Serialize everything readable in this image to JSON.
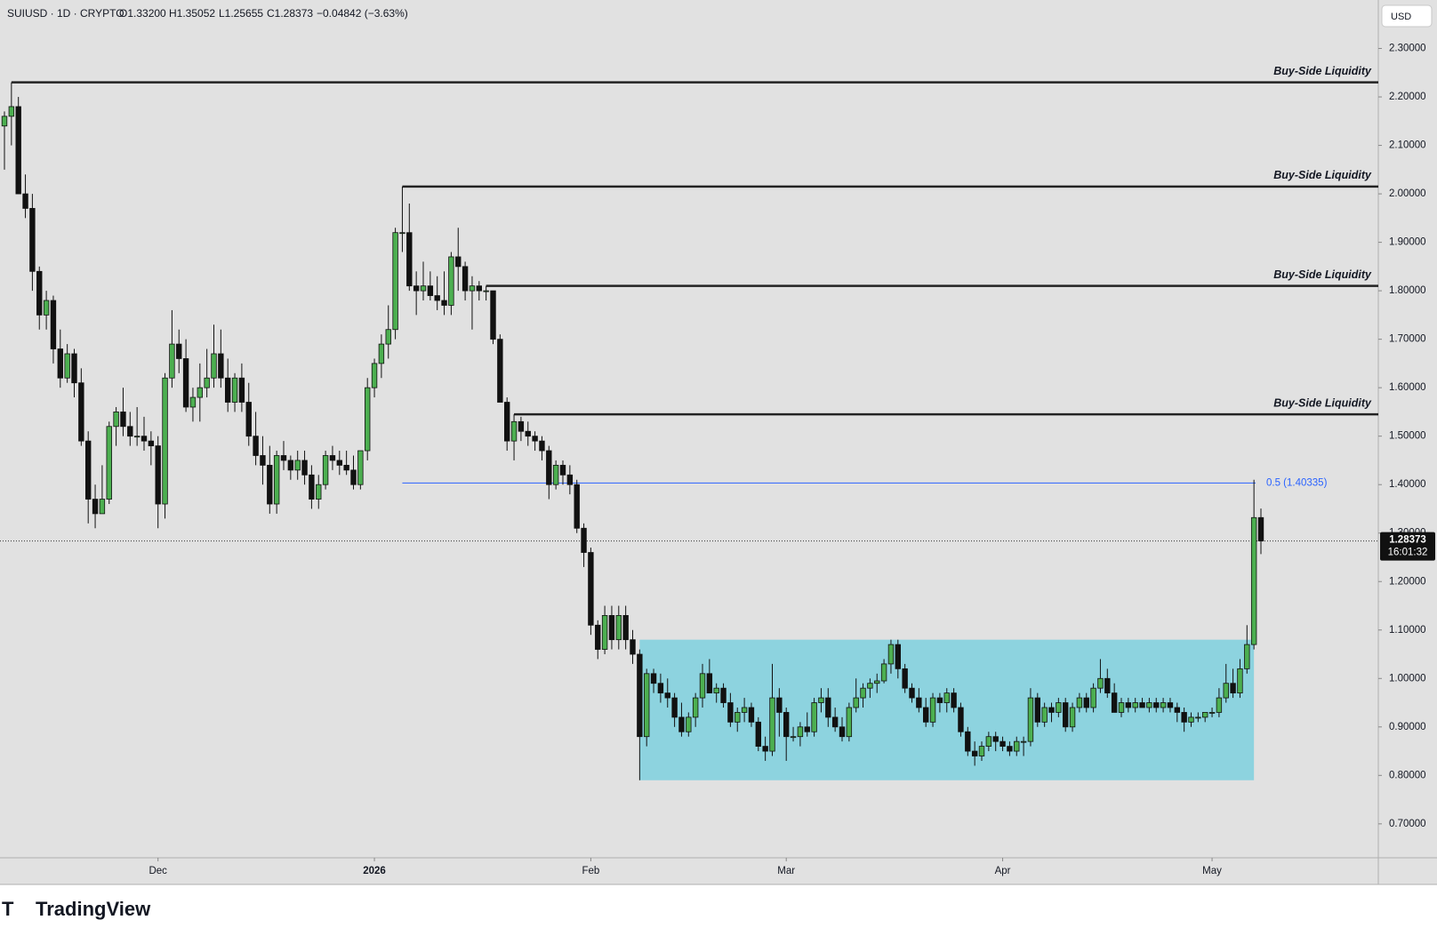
{
  "header": {
    "symbol": "SUIUSD · 1D · CRYPTO",
    "open": "O1.33200",
    "high": "H1.35052",
    "low": "L1.25655",
    "close": "C1.28373",
    "change": "−0.04842 (−3.63%)"
  },
  "currency": "USD",
  "brand": "TradingView",
  "chart_data": {
    "type": "candlestick",
    "up_color": "#4caf50",
    "down_color": "#111111",
    "ylim": [
      0.63,
      2.4
    ],
    "yticks": [
      {
        "value": 0.7,
        "label": "0.70000"
      },
      {
        "value": 0.8,
        "label": "0.80000"
      },
      {
        "value": 0.9,
        "label": "0.90000"
      },
      {
        "value": 1.0,
        "label": "1.00000"
      },
      {
        "value": 1.1,
        "label": "1.10000"
      },
      {
        "value": 1.2,
        "label": "1.20000"
      },
      {
        "value": 1.3,
        "label": "1.30000"
      },
      {
        "value": 1.4,
        "label": "1.40000"
      },
      {
        "value": 1.5,
        "label": "1.50000"
      },
      {
        "value": 1.6,
        "label": "1.60000"
      },
      {
        "value": 1.7,
        "label": "1.70000"
      },
      {
        "value": 1.8,
        "label": "1.80000"
      },
      {
        "value": 1.9,
        "label": "1.90000"
      },
      {
        "value": 2.0,
        "label": "2.00000"
      },
      {
        "value": 2.1,
        "label": "2.10000"
      },
      {
        "value": 2.2,
        "label": "2.20000"
      },
      {
        "value": 2.3,
        "label": "2.30000"
      }
    ],
    "xticks": [
      {
        "value": 22,
        "label": "Dec"
      },
      {
        "value": 53,
        "label": "2026"
      },
      {
        "value": 84,
        "label": "Feb"
      },
      {
        "value": 112,
        "label": "Mar"
      },
      {
        "value": 143,
        "label": "Apr"
      },
      {
        "value": 173,
        "label": "May"
      }
    ],
    "ohlc": [
      [
        2.14,
        2.17,
        2.05,
        2.16
      ],
      [
        2.16,
        2.23,
        2.1,
        2.18
      ],
      [
        2.18,
        2.2,
        2.0,
        2.0
      ],
      [
        2.0,
        2.04,
        1.95,
        1.97
      ],
      [
        1.97,
        2.0,
        1.8,
        1.84
      ],
      [
        1.84,
        1.85,
        1.72,
        1.75
      ],
      [
        1.75,
        1.8,
        1.72,
        1.78
      ],
      [
        1.78,
        1.79,
        1.65,
        1.68
      ],
      [
        1.68,
        1.72,
        1.6,
        1.62
      ],
      [
        1.62,
        1.69,
        1.61,
        1.67
      ],
      [
        1.67,
        1.68,
        1.58,
        1.61
      ],
      [
        1.61,
        1.64,
        1.48,
        1.49
      ],
      [
        1.49,
        1.51,
        1.32,
        1.37
      ],
      [
        1.37,
        1.4,
        1.31,
        1.34
      ],
      [
        1.34,
        1.44,
        1.34,
        1.37
      ],
      [
        1.37,
        1.53,
        1.36,
        1.52
      ],
      [
        1.52,
        1.56,
        1.48,
        1.55
      ],
      [
        1.55,
        1.6,
        1.5,
        1.52
      ],
      [
        1.52,
        1.55,
        1.48,
        1.5
      ],
      [
        1.5,
        1.56,
        1.48,
        1.5
      ],
      [
        1.5,
        1.54,
        1.47,
        1.49
      ],
      [
        1.49,
        1.51,
        1.44,
        1.48
      ],
      [
        1.48,
        1.5,
        1.31,
        1.36
      ],
      [
        1.36,
        1.63,
        1.33,
        1.62
      ],
      [
        1.62,
        1.76,
        1.6,
        1.69
      ],
      [
        1.69,
        1.72,
        1.63,
        1.66
      ],
      [
        1.66,
        1.7,
        1.55,
        1.56
      ],
      [
        1.56,
        1.6,
        1.53,
        1.58
      ],
      [
        1.58,
        1.65,
        1.53,
        1.6
      ],
      [
        1.6,
        1.68,
        1.58,
        1.62
      ],
      [
        1.62,
        1.73,
        1.6,
        1.67
      ],
      [
        1.67,
        1.72,
        1.6,
        1.62
      ],
      [
        1.62,
        1.66,
        1.55,
        1.57
      ],
      [
        1.57,
        1.63,
        1.55,
        1.62
      ],
      [
        1.62,
        1.65,
        1.55,
        1.57
      ],
      [
        1.57,
        1.61,
        1.48,
        1.5
      ],
      [
        1.5,
        1.55,
        1.44,
        1.46
      ],
      [
        1.46,
        1.5,
        1.4,
        1.44
      ],
      [
        1.44,
        1.48,
        1.34,
        1.36
      ],
      [
        1.36,
        1.47,
        1.34,
        1.46
      ],
      [
        1.46,
        1.49,
        1.43,
        1.45
      ],
      [
        1.45,
        1.46,
        1.41,
        1.43
      ],
      [
        1.43,
        1.47,
        1.41,
        1.45
      ],
      [
        1.45,
        1.47,
        1.4,
        1.42
      ],
      [
        1.42,
        1.44,
        1.35,
        1.37
      ],
      [
        1.37,
        1.42,
        1.35,
        1.4
      ],
      [
        1.4,
        1.47,
        1.39,
        1.46
      ],
      [
        1.46,
        1.48,
        1.43,
        1.45
      ],
      [
        1.45,
        1.47,
        1.42,
        1.44
      ],
      [
        1.44,
        1.47,
        1.42,
        1.43
      ],
      [
        1.43,
        1.46,
        1.39,
        1.4
      ],
      [
        1.4,
        1.47,
        1.39,
        1.47
      ],
      [
        1.47,
        1.62,
        1.45,
        1.6
      ],
      [
        1.6,
        1.66,
        1.58,
        1.65
      ],
      [
        1.65,
        1.71,
        1.62,
        1.69
      ],
      [
        1.69,
        1.77,
        1.66,
        1.72
      ],
      [
        1.72,
        1.93,
        1.7,
        1.92
      ],
      [
        1.92,
        2.015,
        1.88,
        1.92
      ],
      [
        1.92,
        1.98,
        1.8,
        1.81
      ],
      [
        1.81,
        1.84,
        1.75,
        1.8
      ],
      [
        1.8,
        1.86,
        1.78,
        1.81
      ],
      [
        1.81,
        1.84,
        1.78,
        1.79
      ],
      [
        1.79,
        1.83,
        1.76,
        1.78
      ],
      [
        1.78,
        1.84,
        1.75,
        1.77
      ],
      [
        1.77,
        1.88,
        1.75,
        1.87
      ],
      [
        1.87,
        1.93,
        1.8,
        1.85
      ],
      [
        1.85,
        1.86,
        1.78,
        1.8
      ],
      [
        1.8,
        1.83,
        1.72,
        1.81
      ],
      [
        1.81,
        1.82,
        1.78,
        1.8
      ],
      [
        1.8,
        1.81,
        1.78,
        1.8
      ],
      [
        1.8,
        1.8,
        1.69,
        1.7
      ],
      [
        1.7,
        1.71,
        1.57,
        1.57
      ],
      [
        1.57,
        1.58,
        1.47,
        1.49
      ],
      [
        1.49,
        1.545,
        1.45,
        1.53
      ],
      [
        1.53,
        1.54,
        1.49,
        1.51
      ],
      [
        1.51,
        1.53,
        1.48,
        1.5
      ],
      [
        1.5,
        1.51,
        1.47,
        1.49
      ],
      [
        1.49,
        1.5,
        1.45,
        1.47
      ],
      [
        1.47,
        1.48,
        1.37,
        1.4
      ],
      [
        1.4,
        1.45,
        1.39,
        1.44
      ],
      [
        1.44,
        1.45,
        1.4,
        1.42
      ],
      [
        1.42,
        1.44,
        1.38,
        1.4
      ],
      [
        1.4,
        1.41,
        1.3,
        1.31
      ],
      [
        1.31,
        1.32,
        1.23,
        1.26
      ],
      [
        1.26,
        1.27,
        1.09,
        1.11
      ],
      [
        1.11,
        1.12,
        1.04,
        1.06
      ],
      [
        1.06,
        1.15,
        1.05,
        1.13
      ],
      [
        1.13,
        1.15,
        1.06,
        1.08
      ],
      [
        1.08,
        1.15,
        1.06,
        1.13
      ],
      [
        1.13,
        1.15,
        1.06,
        1.08
      ],
      [
        1.08,
        1.1,
        1.03,
        1.05
      ],
      [
        1.05,
        1.06,
        0.79,
        0.88
      ],
      [
        0.88,
        1.02,
        0.86,
        1.01
      ],
      [
        1.01,
        1.02,
        0.97,
        0.99
      ],
      [
        0.99,
        1.01,
        0.95,
        0.97
      ],
      [
        0.97,
        1.0,
        0.94,
        0.96
      ],
      [
        0.96,
        0.97,
        0.9,
        0.92
      ],
      [
        0.92,
        0.95,
        0.88,
        0.89
      ],
      [
        0.89,
        0.93,
        0.88,
        0.92
      ],
      [
        0.92,
        0.97,
        0.9,
        0.96
      ],
      [
        0.96,
        1.03,
        0.94,
        1.01
      ],
      [
        1.01,
        1.04,
        0.97,
        0.97
      ],
      [
        0.97,
        0.99,
        0.95,
        0.98
      ],
      [
        0.98,
        0.99,
        0.94,
        0.95
      ],
      [
        0.95,
        0.97,
        0.9,
        0.91
      ],
      [
        0.91,
        0.94,
        0.89,
        0.93
      ],
      [
        0.93,
        0.96,
        0.91,
        0.94
      ],
      [
        0.94,
        0.95,
        0.9,
        0.91
      ],
      [
        0.91,
        0.92,
        0.85,
        0.86
      ],
      [
        0.86,
        0.88,
        0.83,
        0.85
      ],
      [
        0.85,
        1.03,
        0.84,
        0.96
      ],
      [
        0.96,
        0.98,
        0.88,
        0.93
      ],
      [
        0.93,
        0.94,
        0.83,
        0.88
      ],
      [
        0.88,
        0.9,
        0.87,
        0.88
      ],
      [
        0.88,
        0.91,
        0.86,
        0.9
      ],
      [
        0.9,
        0.93,
        0.88,
        0.89
      ],
      [
        0.89,
        0.96,
        0.88,
        0.95
      ],
      [
        0.95,
        0.98,
        0.93,
        0.96
      ],
      [
        0.96,
        0.98,
        0.9,
        0.92
      ],
      [
        0.92,
        0.94,
        0.89,
        0.9
      ],
      [
        0.9,
        0.92,
        0.87,
        0.88
      ],
      [
        0.88,
        0.95,
        0.87,
        0.94
      ],
      [
        0.94,
        1.0,
        0.93,
        0.96
      ],
      [
        0.96,
        0.99,
        0.94,
        0.98
      ],
      [
        0.98,
        1.0,
        0.96,
        0.99
      ],
      [
        0.99,
        1.01,
        0.97,
        0.995
      ],
      [
        0.995,
        1.04,
        0.99,
        1.03
      ],
      [
        1.03,
        1.08,
        1.01,
        1.07
      ],
      [
        1.07,
        1.08,
        1.0,
        1.02
      ],
      [
        1.02,
        1.03,
        0.97,
        0.98
      ],
      [
        0.98,
        0.99,
        0.95,
        0.96
      ],
      [
        0.96,
        0.98,
        0.93,
        0.94
      ],
      [
        0.94,
        0.96,
        0.9,
        0.91
      ],
      [
        0.91,
        0.97,
        0.9,
        0.96
      ],
      [
        0.96,
        0.97,
        0.93,
        0.95
      ],
      [
        0.95,
        0.98,
        0.93,
        0.97
      ],
      [
        0.97,
        0.98,
        0.93,
        0.94
      ],
      [
        0.94,
        0.95,
        0.88,
        0.89
      ],
      [
        0.89,
        0.9,
        0.84,
        0.85
      ],
      [
        0.85,
        0.87,
        0.82,
        0.84
      ],
      [
        0.84,
        0.87,
        0.83,
        0.86
      ],
      [
        0.86,
        0.89,
        0.85,
        0.88
      ],
      [
        0.88,
        0.89,
        0.85,
        0.87
      ],
      [
        0.87,
        0.88,
        0.85,
        0.86
      ],
      [
        0.86,
        0.87,
        0.84,
        0.85
      ],
      [
        0.85,
        0.88,
        0.84,
        0.87
      ],
      [
        0.87,
        0.88,
        0.84,
        0.87
      ],
      [
        0.87,
        0.98,
        0.86,
        0.96
      ],
      [
        0.96,
        0.97,
        0.9,
        0.91
      ],
      [
        0.91,
        0.95,
        0.9,
        0.94
      ],
      [
        0.94,
        0.95,
        0.91,
        0.93
      ],
      [
        0.93,
        0.96,
        0.92,
        0.95
      ],
      [
        0.95,
        0.96,
        0.89,
        0.9
      ],
      [
        0.9,
        0.95,
        0.89,
        0.94
      ],
      [
        0.94,
        0.97,
        0.93,
        0.96
      ],
      [
        0.96,
        0.97,
        0.93,
        0.94
      ],
      [
        0.94,
        0.99,
        0.93,
        0.98
      ],
      [
        0.98,
        1.04,
        0.97,
        1.0
      ],
      [
        1.0,
        1.02,
        0.96,
        0.97
      ],
      [
        0.97,
        0.99,
        0.93,
        0.93
      ],
      [
        0.93,
        0.96,
        0.92,
        0.95
      ],
      [
        0.95,
        0.96,
        0.93,
        0.94
      ],
      [
        0.94,
        0.96,
        0.93,
        0.95
      ],
      [
        0.95,
        0.96,
        0.94,
        0.94
      ],
      [
        0.94,
        0.96,
        0.93,
        0.95
      ],
      [
        0.95,
        0.96,
        0.93,
        0.94
      ],
      [
        0.94,
        0.96,
        0.93,
        0.95
      ],
      [
        0.95,
        0.96,
        0.93,
        0.94
      ],
      [
        0.94,
        0.95,
        0.91,
        0.93
      ],
      [
        0.93,
        0.94,
        0.89,
        0.91
      ],
      [
        0.91,
        0.93,
        0.9,
        0.92
      ],
      [
        0.92,
        0.93,
        0.91,
        0.92
      ],
      [
        0.92,
        0.93,
        0.91,
        0.93
      ],
      [
        0.93,
        0.94,
        0.92,
        0.93
      ],
      [
        0.93,
        0.98,
        0.92,
        0.96
      ],
      [
        0.96,
        1.03,
        0.95,
        0.99
      ],
      [
        0.99,
        1.02,
        0.96,
        0.97
      ],
      [
        0.97,
        1.04,
        0.96,
        1.02
      ],
      [
        1.02,
        1.11,
        1.01,
        1.07
      ],
      [
        1.07,
        1.41,
        1.06,
        1.332
      ],
      [
        1.332,
        1.35052,
        1.25655,
        1.28373
      ]
    ],
    "levels": [
      {
        "label": "Buy-Side Liquidity",
        "value": 2.23
      },
      {
        "label": "Buy-Side Liquidity",
        "value": 2.015
      },
      {
        "label": "Buy-Side Liquidity",
        "value": 1.81
      },
      {
        "label": "Buy-Side Liquidity",
        "value": 1.545
      }
    ],
    "level_color": "#222222",
    "fib": {
      "value": 1.40335,
      "label": "0.5 (1.40335)",
      "color": "#2962ff"
    },
    "range_box": {
      "low": 0.79,
      "high": 1.08,
      "color": "#8dd3df"
    },
    "last_price": {
      "value": 1.28373,
      "label": "1.28373",
      "countdown": "16:01:32"
    }
  }
}
